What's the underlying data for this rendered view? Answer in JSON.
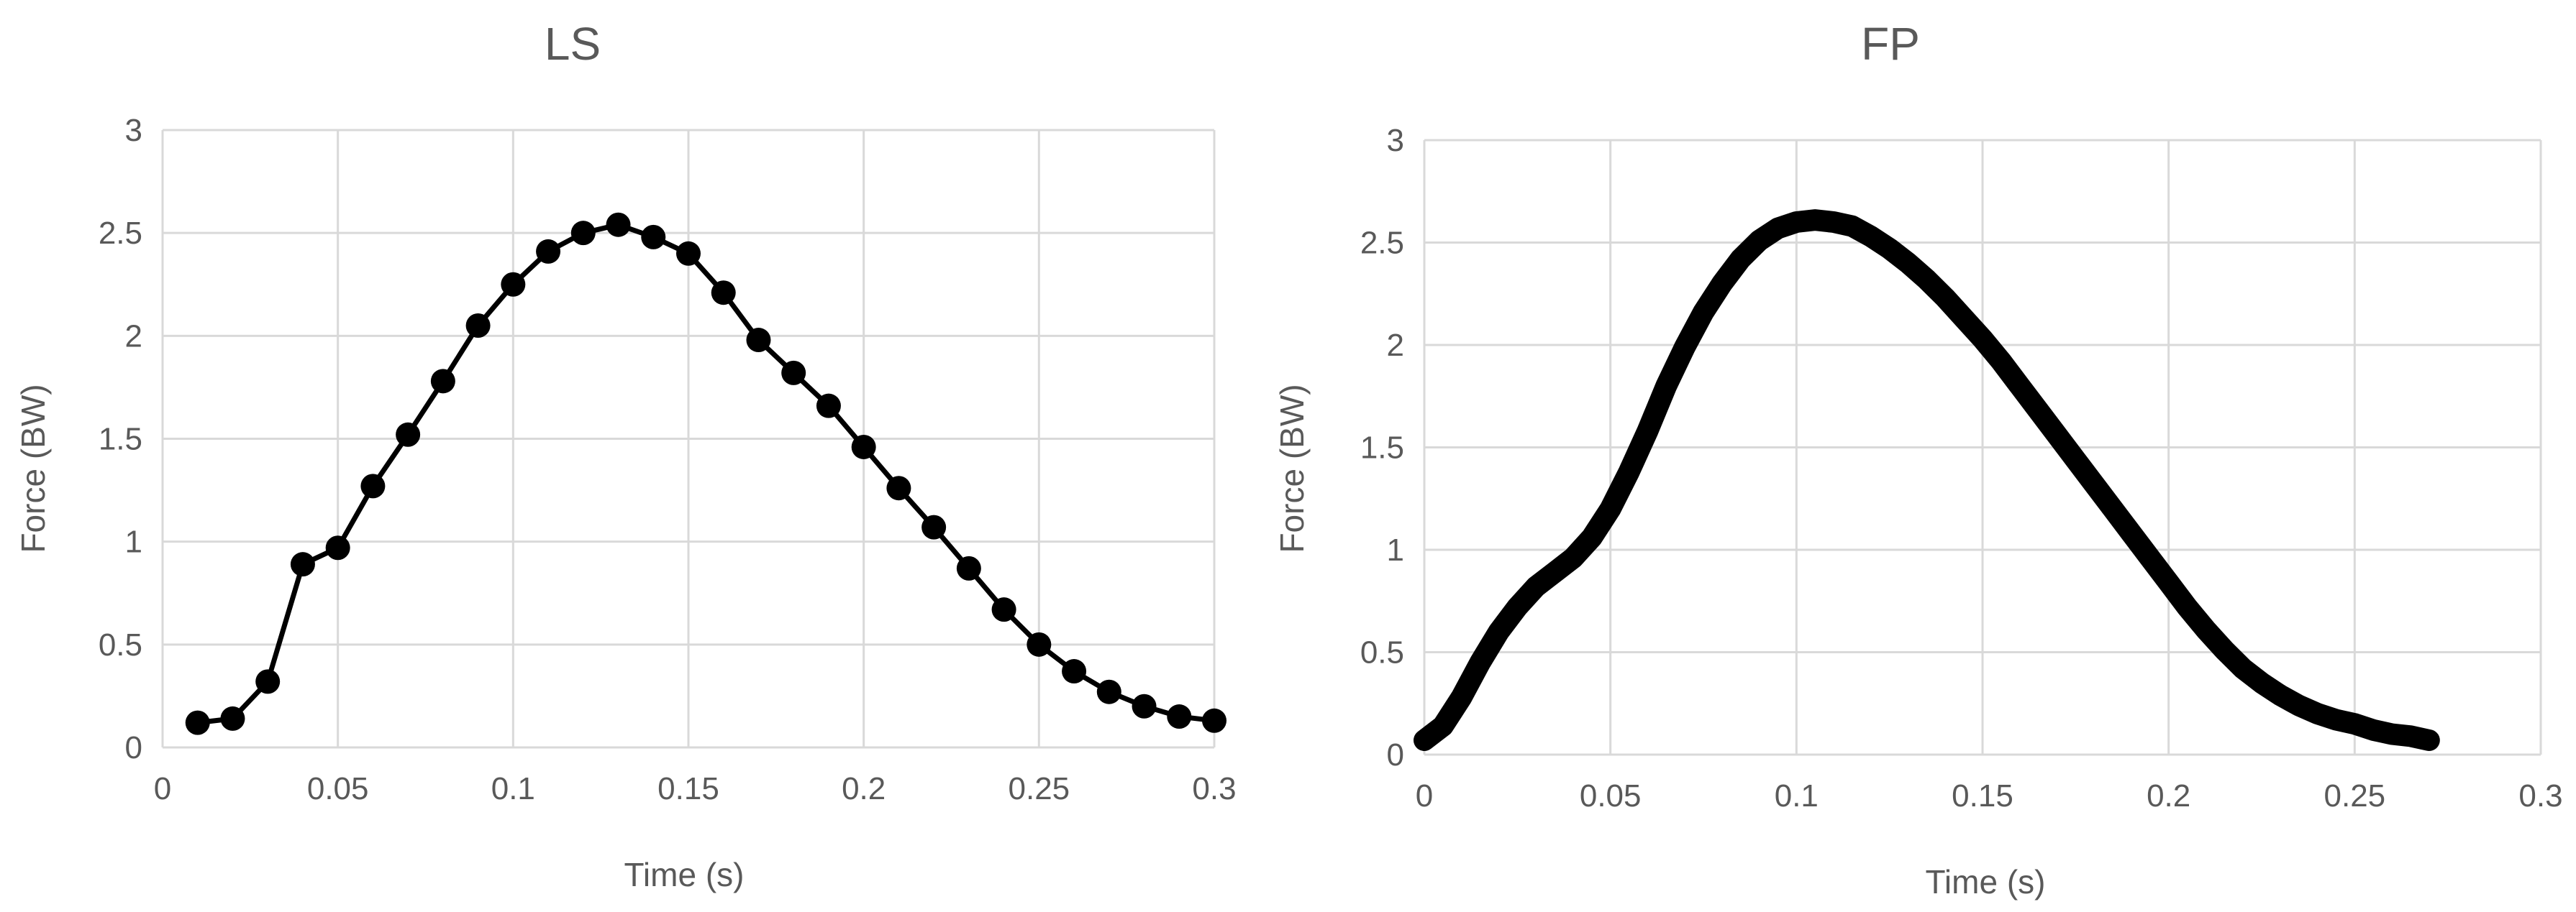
{
  "chart_data": [
    {
      "type": "line",
      "title": "LS",
      "xlabel": "Time (s)",
      "ylabel": "Force (BW)",
      "xlim": [
        0,
        0.3
      ],
      "ylim": [
        0,
        3
      ],
      "x_ticks": [
        "0",
        "0.05",
        "0.1",
        "0.15",
        "0.2",
        "0.25",
        "0.3"
      ],
      "y_ticks": [
        "0",
        "0.5",
        "1",
        "1.5",
        "2",
        "2.5",
        "3"
      ],
      "grid": true,
      "markers": true,
      "series": [
        {
          "x": [
            0.01,
            0.02,
            0.03,
            0.04,
            0.05,
            0.06,
            0.07,
            0.08,
            0.09,
            0.1,
            0.11,
            0.12,
            0.13,
            0.14,
            0.15,
            0.16,
            0.17,
            0.18,
            0.19,
            0.2,
            0.21,
            0.22,
            0.23,
            0.24,
            0.25,
            0.26,
            0.27,
            0.28,
            0.29,
            0.3
          ],
          "y": [
            0.12,
            0.14,
            0.32,
            0.89,
            0.97,
            1.27,
            1.52,
            1.78,
            2.05,
            2.25,
            2.41,
            2.5,
            2.54,
            2.48,
            2.4,
            2.21,
            1.98,
            1.82,
            1.66,
            1.46,
            1.26,
            1.07,
            0.87,
            0.67,
            0.5,
            0.37,
            0.27,
            0.2,
            0.15,
            0.13
          ]
        }
      ]
    },
    {
      "type": "line",
      "title": "FP",
      "xlabel": "Time (s)",
      "ylabel": "Force (BW)",
      "xlim": [
        0,
        0.3
      ],
      "ylim": [
        0,
        3
      ],
      "x_ticks": [
        "0",
        "0.05",
        "0.1",
        "0.15",
        "0.2",
        "0.25",
        "0.3"
      ],
      "y_ticks": [
        "0",
        "0.5",
        "1",
        "1.5",
        "2",
        "2.5",
        "3"
      ],
      "grid": true,
      "markers": false,
      "series": [
        {
          "x": [
            0.0,
            0.005,
            0.01,
            0.015,
            0.02,
            0.025,
            0.03,
            0.035,
            0.04,
            0.045,
            0.05,
            0.055,
            0.06,
            0.065,
            0.07,
            0.075,
            0.08,
            0.085,
            0.09,
            0.095,
            0.1,
            0.105,
            0.11,
            0.115,
            0.12,
            0.125,
            0.13,
            0.135,
            0.14,
            0.145,
            0.15,
            0.155,
            0.16,
            0.165,
            0.17,
            0.175,
            0.18,
            0.185,
            0.19,
            0.195,
            0.2,
            0.205,
            0.21,
            0.215,
            0.22,
            0.225,
            0.23,
            0.235,
            0.24,
            0.245,
            0.25,
            0.255,
            0.26,
            0.265,
            0.27
          ],
          "y": [
            0.07,
            0.14,
            0.28,
            0.45,
            0.6,
            0.72,
            0.82,
            0.89,
            0.96,
            1.06,
            1.2,
            1.38,
            1.58,
            1.8,
            1.99,
            2.16,
            2.3,
            2.42,
            2.51,
            2.57,
            2.6,
            2.61,
            2.6,
            2.58,
            2.53,
            2.47,
            2.4,
            2.32,
            2.23,
            2.13,
            2.03,
            1.92,
            1.8,
            1.68,
            1.56,
            1.44,
            1.32,
            1.2,
            1.08,
            0.96,
            0.84,
            0.72,
            0.61,
            0.51,
            0.42,
            0.35,
            0.29,
            0.24,
            0.2,
            0.17,
            0.15,
            0.12,
            0.1,
            0.09,
            0.07
          ]
        }
      ]
    }
  ]
}
